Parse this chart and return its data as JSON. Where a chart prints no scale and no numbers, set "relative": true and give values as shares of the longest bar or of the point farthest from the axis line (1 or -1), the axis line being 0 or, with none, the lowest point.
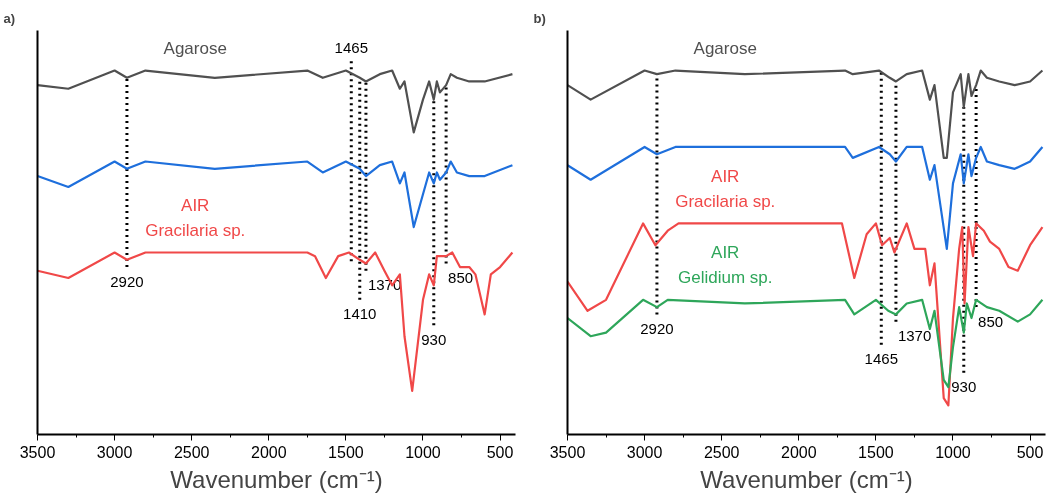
{
  "chart_data": [
    {
      "type": "line",
      "title": "a)",
      "xlabel": "Wavenumber (cm⁻¹)",
      "xlim": [
        3500,
        400
      ],
      "xticks": [
        3500,
        3000,
        2500,
        2000,
        1500,
        1000,
        500
      ],
      "relative": true,
      "tick_labels": "x",
      "grid": false,
      "line_style": "solid",
      "marker": "none",
      "series": [
        {
          "name": "Agarose",
          "color": "#505050",
          "x": [
            3500,
            3300,
            3000,
            2920,
            2800,
            2350,
            1750,
            1650,
            1500,
            1410,
            1370,
            1280,
            1200,
            1150,
            1120,
            1060,
            1000,
            960,
            930,
            910,
            890,
            850,
            820,
            780,
            700,
            600,
            420
          ],
          "values": [
            0.96,
            0.95,
            1.0,
            0.98,
            1.0,
            0.98,
            1.0,
            0.98,
            1.0,
            0.98,
            0.97,
            0.99,
            1.0,
            0.95,
            0.97,
            0.83,
            0.92,
            0.97,
            0.92,
            0.97,
            0.94,
            0.96,
            0.99,
            0.98,
            0.97,
            0.97,
            0.99
          ]
        },
        {
          "color": "#1e6fdc",
          "x": [
            3500,
            3300,
            3000,
            2920,
            2800,
            2350,
            1750,
            1650,
            1500,
            1410,
            1370,
            1280,
            1200,
            1150,
            1120,
            1060,
            1000,
            960,
            930,
            910,
            890,
            850,
            820,
            780,
            700,
            600,
            420
          ],
          "values": [
            0.71,
            0.68,
            0.75,
            0.73,
            0.75,
            0.73,
            0.75,
            0.72,
            0.75,
            0.73,
            0.71,
            0.74,
            0.75,
            0.69,
            0.72,
            0.57,
            0.66,
            0.72,
            0.69,
            0.72,
            0.7,
            0.72,
            0.75,
            0.72,
            0.71,
            0.71,
            0.74
          ]
        },
        {
          "name": "AIR\nGracilaria sp.",
          "color": "#f04848",
          "x": [
            3500,
            3300,
            3000,
            2920,
            2800,
            1750,
            1700,
            1630,
            1550,
            1480,
            1410,
            1370,
            1310,
            1250,
            1200,
            1150,
            1120,
            1070,
            1000,
            960,
            930,
            910,
            850,
            810,
            760,
            700,
            660,
            600,
            560,
            500,
            420
          ],
          "values": [
            0.45,
            0.43,
            0.5,
            0.48,
            0.5,
            0.5,
            0.49,
            0.43,
            0.49,
            0.5,
            0.48,
            0.47,
            0.5,
            0.45,
            0.41,
            0.44,
            0.27,
            0.12,
            0.37,
            0.44,
            0.41,
            0.49,
            0.49,
            0.5,
            0.46,
            0.46,
            0.44,
            0.33,
            0.44,
            0.46,
            0.5
          ]
        }
      ],
      "ref_lines": [
        {
          "axis": "x",
          "value": 2920,
          "label": "2920",
          "color": "#000000",
          "line_style": "dotted"
        },
        {
          "axis": "x",
          "value": 1465,
          "label": "1465",
          "color": "#000000",
          "line_style": "dotted"
        },
        {
          "axis": "x",
          "value": 1410,
          "label": "1410",
          "color": "#000000",
          "line_style": "dotted"
        },
        {
          "axis": "x",
          "value": 1370,
          "label": "1370",
          "color": "#000000",
          "line_style": "dotted"
        },
        {
          "axis": "x",
          "value": 930,
          "label": "930",
          "color": "#000000",
          "line_style": "dotted"
        },
        {
          "axis": "x",
          "value": 850,
          "label": "850",
          "color": "#000000",
          "line_style": "dotted"
        }
      ]
    },
    {
      "type": "line",
      "title": "b)",
      "xlabel": "Wavenumber (cm⁻¹)",
      "xlim": [
        3500,
        400
      ],
      "xticks": [
        3500,
        3000,
        2500,
        2000,
        1500,
        1000,
        500
      ],
      "relative": true,
      "tick_labels": "x",
      "grid": false,
      "line_style": "solid",
      "marker": "none",
      "series": [
        {
          "name": "Agarose",
          "color": "#505050",
          "x": [
            3500,
            3350,
            3000,
            2920,
            2800,
            2350,
            1700,
            1650,
            1480,
            1410,
            1370,
            1300,
            1200,
            1150,
            1120,
            1060,
            1040,
            1000,
            950,
            930,
            900,
            880,
            850,
            820,
            780,
            700,
            600,
            500,
            420
          ],
          "values": [
            0.96,
            0.92,
            1.0,
            0.99,
            1.0,
            0.99,
            1.0,
            0.99,
            1.0,
            0.98,
            0.97,
            0.99,
            1.0,
            0.92,
            0.96,
            0.76,
            0.76,
            0.94,
            0.99,
            0.9,
            0.99,
            0.93,
            0.96,
            1.0,
            0.98,
            0.97,
            0.96,
            0.97,
            1.0
          ]
        },
        {
          "color": "#1e6fdc",
          "x": [
            3500,
            3350,
            3000,
            2920,
            2800,
            1700,
            1650,
            1480,
            1410,
            1370,
            1300,
            1200,
            1150,
            1120,
            1040,
            1000,
            950,
            930,
            900,
            880,
            850,
            820,
            780,
            700,
            600,
            500,
            420
          ],
          "values": [
            0.74,
            0.7,
            0.79,
            0.77,
            0.79,
            0.79,
            0.76,
            0.79,
            0.77,
            0.75,
            0.79,
            0.79,
            0.7,
            0.74,
            0.51,
            0.69,
            0.77,
            0.69,
            0.77,
            0.71,
            0.76,
            0.79,
            0.75,
            0.74,
            0.73,
            0.75,
            0.79
          ]
        },
        {
          "name": "AIR\nGracilaria sp.",
          "color": "#f04848",
          "x": [
            3500,
            3370,
            3250,
            3010,
            2930,
            2850,
            2780,
            1720,
            1640,
            1560,
            1500,
            1460,
            1410,
            1380,
            1300,
            1250,
            1180,
            1150,
            1120,
            1060,
            1030,
            1000,
            960,
            940,
            925,
            900,
            870,
            850,
            800,
            760,
            700,
            640,
            580,
            500,
            420
          ],
          "values": [
            0.42,
            0.34,
            0.37,
            0.58,
            0.52,
            0.56,
            0.58,
            0.58,
            0.43,
            0.55,
            0.58,
            0.52,
            0.54,
            0.5,
            0.58,
            0.51,
            0.51,
            0.41,
            0.47,
            0.1,
            0.08,
            0.32,
            0.51,
            0.57,
            0.36,
            0.57,
            0.49,
            0.58,
            0.56,
            0.53,
            0.51,
            0.46,
            0.45,
            0.52,
            0.57
          ]
        },
        {
          "name": "AIR\nGelidium sp.",
          "color": "#2ea65a",
          "x": [
            3500,
            3350,
            3250,
            3010,
            2920,
            2850,
            2350,
            1700,
            1640,
            1500,
            1420,
            1370,
            1300,
            1200,
            1150,
            1120,
            1060,
            1030,
            1000,
            960,
            930,
            910,
            880,
            850,
            780,
            700,
            580,
            500,
            420
          ],
          "values": [
            0.32,
            0.27,
            0.28,
            0.37,
            0.35,
            0.37,
            0.36,
            0.37,
            0.33,
            0.37,
            0.34,
            0.33,
            0.36,
            0.37,
            0.29,
            0.34,
            0.15,
            0.13,
            0.24,
            0.35,
            0.28,
            0.36,
            0.32,
            0.37,
            0.35,
            0.34,
            0.31,
            0.33,
            0.37
          ]
        }
      ],
      "ref_lines": [
        {
          "axis": "x",
          "value": 2920,
          "label": "2920",
          "color": "#000000",
          "line_style": "dotted"
        },
        {
          "axis": "x",
          "value": 1465,
          "label": "1465",
          "color": "#000000",
          "line_style": "dotted"
        },
        {
          "axis": "x",
          "value": 1370,
          "label": "1370",
          "color": "#000000",
          "line_style": "dotted"
        },
        {
          "axis": "x",
          "value": 930,
          "label": "930",
          "color": "#000000",
          "line_style": "dotted"
        },
        {
          "axis": "x",
          "value": 850,
          "label": "850",
          "color": "#000000",
          "line_style": "dotted"
        }
      ]
    }
  ]
}
